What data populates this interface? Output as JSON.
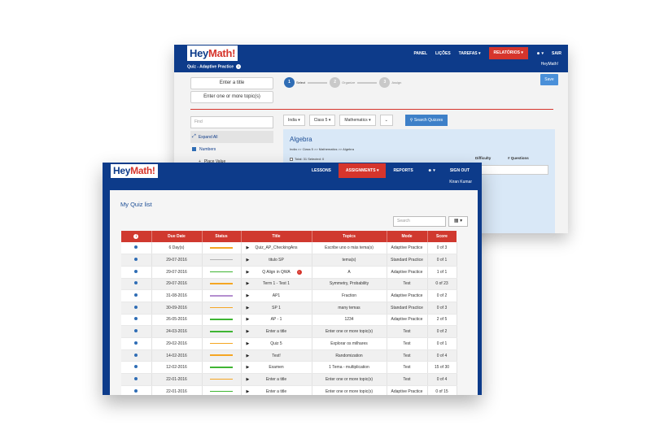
{
  "colors": {
    "brand_blue": "#0d3b8a",
    "accent_red": "#d6352c",
    "status_orange": "#f5a623",
    "status_green": "#3fb533",
    "status_gray": "#b3b3b3",
    "status_purple": "#b48fcf"
  },
  "back_window": {
    "logo_hey": "Hey",
    "logo_math": "Math!",
    "nav": [
      "PANEL",
      "LIÇÕES",
      "TAREFAS",
      "RELATÓRIOS",
      "SAIR"
    ],
    "sub_title": "Quiz - Adaptive Practice",
    "sub_user": "HeyMath!",
    "title_btn": "Enter a title",
    "topic_btn": "Enter one or more topic(s)",
    "save": "Save",
    "steps": [
      {
        "num": "1",
        "label": "Select"
      },
      {
        "num": "2",
        "label": "Organize"
      },
      {
        "num": "3",
        "label": "Assign"
      }
    ],
    "find_placeholder": "Find",
    "side": {
      "expand_all": "Expand All",
      "numbers": "Numbers",
      "place_value": "Place Value"
    },
    "filters": [
      "India",
      "Class 5",
      "Mathematics"
    ],
    "search_quizzes": "Search Quizzes",
    "algebra": {
      "title": "Algebra",
      "path": "India >> Class 5 >> Mathematics >> Algebra",
      "total": "Total: 31 Selected: 0",
      "col_difficulty": "Difficulty",
      "col_questions": "# Questions"
    }
  },
  "front_window": {
    "logo_hey": "Hey",
    "logo_math": "Math!",
    "nav": [
      "LESSONS",
      "ASSIGNMENTS",
      "REPORTS",
      "SIGN OUT"
    ],
    "user_name": "Kiran Kumar",
    "list_title": "My Quiz list",
    "search_placeholder": "Search",
    "columns": [
      "Due Date",
      "Status",
      "Title",
      "Topics",
      "Mode",
      "Score"
    ],
    "rows": [
      {
        "due": "6 Day(s)",
        "status": "orange",
        "title": "Quiz_AP_CheckingAns",
        "topics": "Escribe uno o más tema(s)",
        "mode": "Adaptive Practice",
        "score": "0 of 3"
      },
      {
        "due": "29-07-2016",
        "status": "gray",
        "title": "titulo SP",
        "topics": "tema(s)",
        "mode": "Standard Practice",
        "score": "0 of 1"
      },
      {
        "due": "29-07-2016",
        "status": "green",
        "title": "Q Align in QWA",
        "topics": "A",
        "mode": "Adaptive Practice",
        "score": "1 of 1",
        "alert": true
      },
      {
        "due": "29-07-2016",
        "status": "orange",
        "title": "Term 1 - Test 1",
        "topics": "Symmetry, Probability",
        "mode": "Test",
        "score": "0 of 23"
      },
      {
        "due": "31-08-2016",
        "status": "purple",
        "title": "AP1",
        "topics": "Fraction",
        "mode": "Adaptive Practice",
        "score": "0 of 2"
      },
      {
        "due": "30-09-2016",
        "status": "orange",
        "title": "SP 1",
        "topics": "many temas",
        "mode": "Standard Practice",
        "score": "0 of 3"
      },
      {
        "due": "26-05-2016",
        "status": "green",
        "title": "AP - 1",
        "topics": "1234",
        "mode": "Adaptive Practice",
        "score": "2 of 5"
      },
      {
        "due": "24-03-2016",
        "status": "green",
        "title": "Enter a title",
        "topics": "Enter one or more topic(s)",
        "mode": "Test",
        "score": "0 of 2"
      },
      {
        "due": "29-02-2016",
        "status": "orange",
        "title": "Quiz 5",
        "topics": "Explorar os milhares",
        "mode": "Test",
        "score": "0 of 1"
      },
      {
        "due": "14-02-2016",
        "status": "orange",
        "title": "Test!",
        "topics": "Randomization",
        "mode": "Test",
        "score": "0 of 4"
      },
      {
        "due": "12-02-2016",
        "status": "green",
        "title": "Examen",
        "topics": "1 Tema - multiplication",
        "mode": "Test",
        "score": "15 of 30"
      },
      {
        "due": "22-01-2016",
        "status": "orange",
        "title": "Enter a title",
        "topics": "Enter one or more topic(s)",
        "mode": "Test",
        "score": "0 of 4"
      },
      {
        "due": "22-01-2016",
        "status": "green",
        "title": "Enter a title",
        "topics": "Enter one or more topic(s)",
        "mode": "Adaptive Practice",
        "score": "0 of 15"
      }
    ]
  }
}
